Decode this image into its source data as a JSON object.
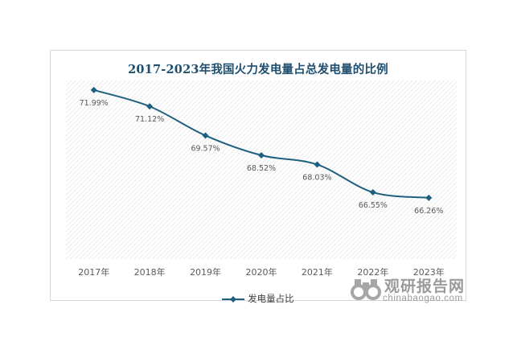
{
  "chart_data": {
    "type": "line",
    "title": "2017-2023年我国火力发电量占总发电量的比例",
    "categories": [
      "2017年",
      "2018年",
      "2019年",
      "2020年",
      "2021年",
      "2022年",
      "2023年"
    ],
    "series": [
      {
        "name": "发电量占比",
        "values": [
          71.99,
          71.12,
          69.57,
          68.52,
          68.03,
          66.55,
          66.26
        ],
        "labels": [
          "71.99%",
          "71.12%",
          "69.57%",
          "68.52%",
          "68.03%",
          "66.55%",
          "66.26%"
        ]
      }
    ],
    "ylim": [
      63.0,
      72.5
    ],
    "grid": false,
    "legend": "bottom",
    "colors": {
      "line": "#1f5f7f",
      "title": "#1e4e6e"
    }
  },
  "watermark": {
    "name": "观研报告网",
    "url": "chinabaogao.com",
    "icon": "binoculars-icon"
  }
}
